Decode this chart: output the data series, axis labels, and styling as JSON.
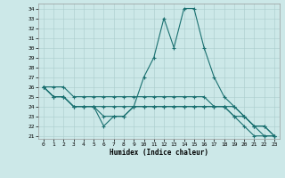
{
  "xlabel": "Humidex (Indice chaleur)",
  "bg_color": "#cce8e8",
  "grid_color": "#aacccc",
  "line_color": "#1a7070",
  "hours": [
    0,
    1,
    2,
    3,
    4,
    5,
    6,
    7,
    8,
    9,
    10,
    11,
    12,
    13,
    14,
    15,
    16,
    17,
    18,
    19,
    20,
    21,
    22,
    23
  ],
  "line1": [
    26,
    25,
    25,
    24,
    24,
    24,
    22,
    23,
    23,
    24,
    27,
    29,
    33,
    30,
    34,
    34,
    30,
    27,
    25,
    24,
    23,
    22,
    22,
    21
  ],
  "line2": [
    26,
    26,
    26,
    25,
    25,
    25,
    25,
    25,
    25,
    25,
    25,
    25,
    25,
    25,
    25,
    25,
    25,
    24,
    24,
    24,
    23,
    22,
    22,
    21
  ],
  "line3": [
    26,
    25,
    25,
    24,
    24,
    24,
    24,
    24,
    24,
    24,
    24,
    24,
    24,
    24,
    24,
    24,
    24,
    24,
    24,
    23,
    23,
    22,
    21,
    21
  ],
  "line4": [
    26,
    25,
    25,
    24,
    24,
    24,
    23,
    23,
    23,
    24,
    24,
    24,
    24,
    24,
    24,
    24,
    24,
    24,
    24,
    23,
    22,
    21,
    21,
    21
  ],
  "ylim": [
    21,
    34
  ],
  "yticks": [
    21,
    22,
    23,
    24,
    25,
    26,
    27,
    28,
    29,
    30,
    31,
    32,
    33,
    34
  ],
  "xticks": [
    0,
    1,
    2,
    3,
    4,
    5,
    6,
    7,
    8,
    9,
    10,
    11,
    12,
    13,
    14,
    15,
    16,
    17,
    18,
    19,
    20,
    21,
    22,
    23
  ]
}
